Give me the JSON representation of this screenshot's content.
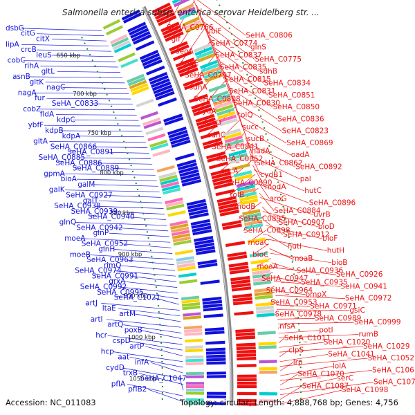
{
  "title": "Salmonella enterica subsp. enterica serovar Heidelberg str. ...",
  "footer": {
    "accession": "Accession: NC_011083",
    "topology": "Topology: circular; Length: 4,888,768 bp; Genes: 4,756"
  },
  "colors": {
    "forward": "#ee1111",
    "reverse": "#1111dd",
    "backbone": "#8a8a8a",
    "dotted": "#1f8a1f"
  },
  "scale_ticks": [
    "650 kbp",
    "700 kbp",
    "750 kbp",
    "800 kbp",
    "850 kbp",
    "900 kbp",
    "950 kbp",
    "1000 kbp",
    "1050 kbp"
  ],
  "left_labels": [
    "dsbG",
    "citG",
    "citX",
    "lipA",
    "crcB",
    "leuS",
    "cobC",
    "rihA",
    "gltL",
    "asnB",
    "gltK",
    "nagC",
    "nagA",
    "fur",
    "SeHA_C0833",
    "cobZ",
    "fldA",
    "kdpC",
    "ybfF",
    "kdpB",
    "kdpA",
    "gltA",
    "SeHA_C0866",
    "SeHA_C0891",
    "SeHA_C0885",
    "SeHA_C0886",
    "SeHA_C0889",
    "gpmA",
    "bioA",
    "galM",
    "galK",
    "SeHA_C0927",
    "galT",
    "SeHA_C0938",
    "SeHA_C0939",
    "SeHA_C0940",
    "glnQ",
    "SeHA_C0942",
    "glnP",
    "moeA",
    "SeHA_C0952",
    "glnH",
    "moeB",
    "SeHA_C0963",
    "rimO",
    "SeHA_C0974",
    "SeHA_C0991",
    "grxA",
    "SeHA_C0992",
    "SeHA_C0995",
    "SeHA_C1021",
    "artJ",
    "ltaE",
    "artM",
    "artI",
    "artQ",
    "poxB",
    "hcr",
    "cspD",
    "artP",
    "hcp",
    "aat",
    "infA",
    "cydD",
    "trxB",
    "SeHA_C1047",
    "pflA",
    "pflB2"
  ],
  "right_labels": [
    "SeHA_C0766",
    "ubiF",
    "SeHA_C0806",
    "glf",
    "SeHA_C0774",
    "glnS",
    "seqA",
    "SeHA_C0837",
    "SeHA_C0775",
    "nagE",
    "SeHA_C0835",
    "sdhB",
    "SeHA_C0797",
    "SeHA_C0815",
    "SeHA_C0834",
    "sdhA",
    "SeHA_C0831",
    "SeHA_C0851",
    "SeHA_C0808",
    "SeHA_C0830",
    "SeHA_C0850",
    "cydA",
    "tolQ",
    "SeHA_C0836",
    "sdhD",
    "succ",
    "SeHA_C0823",
    "sdhC",
    "sucB",
    "SeHA_C0869",
    "SeHA_C0841",
    "nadA",
    "oadA",
    "SeHA_C0852",
    "SeHA_C0862",
    "SeHA_C0892",
    "sucA",
    "cydB1",
    "pal",
    "SeHA_C0890",
    "modA",
    "hutC",
    "tolB",
    "aroG",
    "SeHA_C0896",
    "modB",
    "SeHA_C0884",
    "uvrB",
    "SeHA_C0895",
    "SeHA_C0907",
    "bioD",
    "SeHA_C0898",
    "SeHA_C0912",
    "bioF",
    "moaC",
    "hutI",
    "hutH",
    "bioC",
    "moaB",
    "bioB",
    "moaA",
    "SeHA_C0936",
    "SeHA_C0926",
    "SeHA_C0947",
    "SeHA_C0935",
    "SeHA_C0941",
    "SeHA_C0964",
    "ompX",
    "SeHA_C0972",
    "SeHA_C0953",
    "SeHA_C0971",
    "gsiC",
    "SeHA_C0978",
    "SeHA_C0989",
    "SeHA_C0999",
    "nfsA",
    "potI",
    "rumB",
    "SeHA_C1011",
    "SeHA_C1020",
    "SeHA_C1029",
    "clpS",
    "SeHA_C1041",
    "SeHA_C1052",
    "lrp",
    "lolA",
    "SeHA_C1061",
    "SeHA_C1070",
    "serC",
    "SeHA_C1077",
    "SeHA_C1087",
    "SeHA_C1098"
  ]
}
